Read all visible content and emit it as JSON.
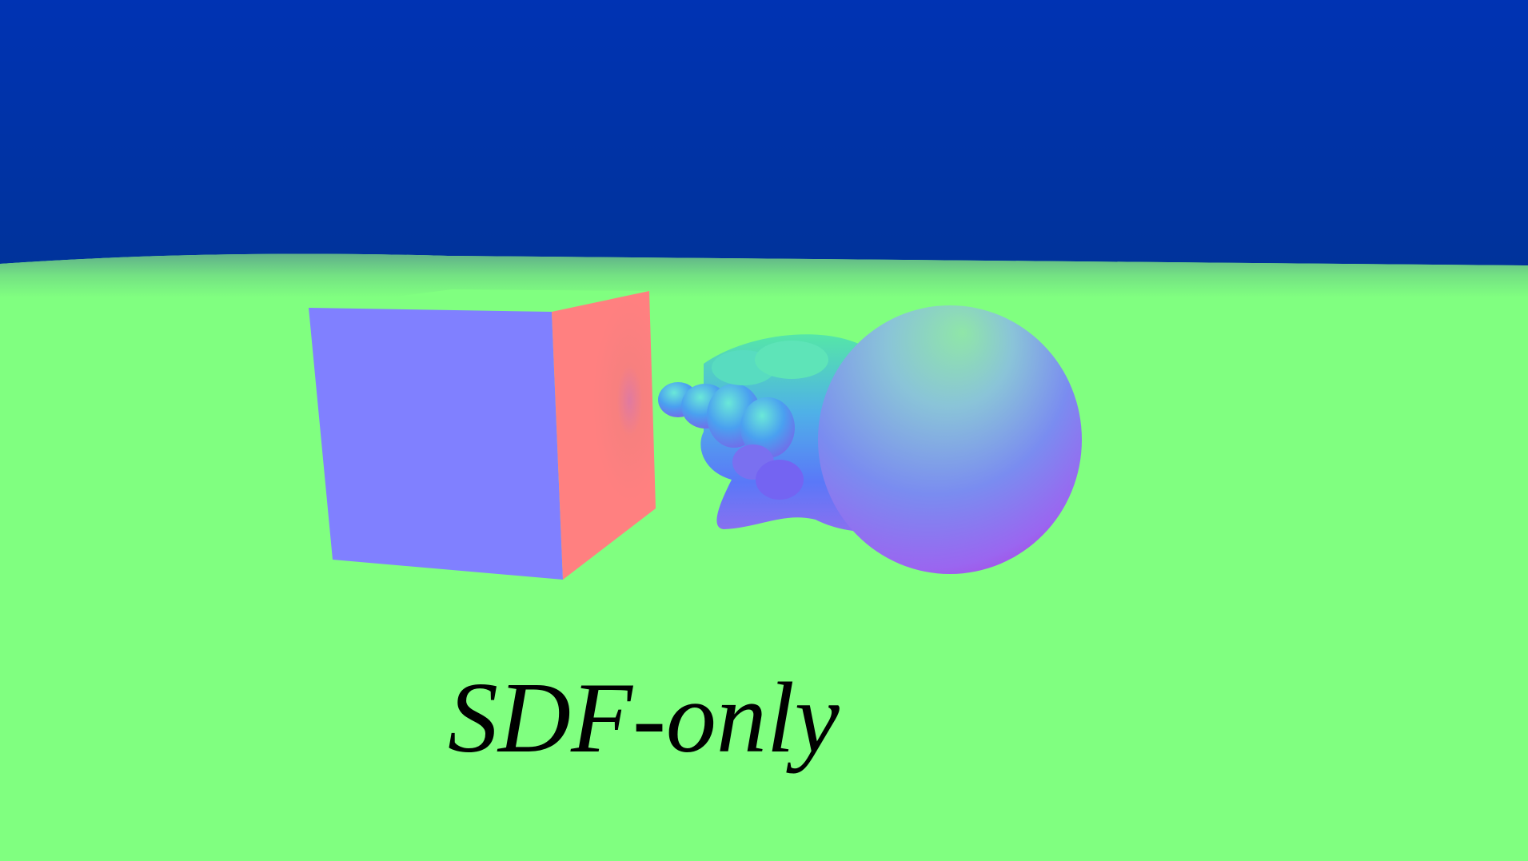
{
  "caption": "SDF-only",
  "colors": {
    "sky_top": "#0033b3",
    "sky_bottom": "#00339a",
    "ground": "#80ff80",
    "cube_front": "#8080ff",
    "cube_side": "#ff8080",
    "cube_top": "#80ff80",
    "text": "#000000"
  },
  "objects": [
    "sky",
    "ground-plane",
    "cube",
    "blob-shape"
  ]
}
